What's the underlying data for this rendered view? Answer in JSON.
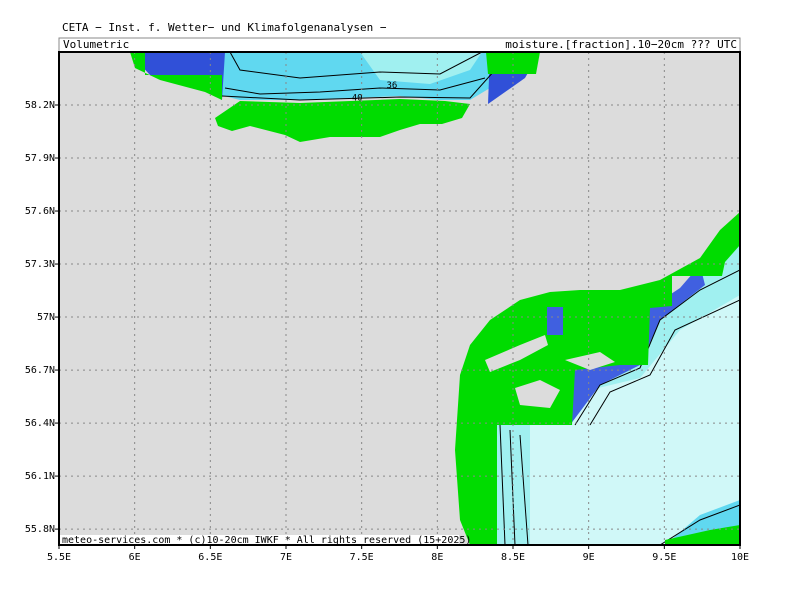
{
  "header": {
    "title": "CETA − Inst. f. Wetter− und Klimafolgenanalysen −",
    "left": "Volumetric",
    "right": "moisture.[fraction].10−20cm ??? UTC"
  },
  "map": {
    "xlim": [
      5.5,
      10
    ],
    "ylim": [
      55.71,
      58.5
    ],
    "xticks": [
      {
        "value": 5.5,
        "label": "5.5E"
      },
      {
        "value": 6,
        "label": "6E"
      },
      {
        "value": 6.5,
        "label": "6.5E"
      },
      {
        "value": 7,
        "label": "7E"
      },
      {
        "value": 7.5,
        "label": "7.5E"
      },
      {
        "value": 8,
        "label": "8E"
      },
      {
        "value": 8.5,
        "label": "8.5E"
      },
      {
        "value": 9,
        "label": "9E"
      },
      {
        "value": 9.5,
        "label": "9.5E"
      },
      {
        "value": 10,
        "label": "10E"
      }
    ],
    "yticks": [
      {
        "value": 58.2,
        "label": "58.2N"
      },
      {
        "value": 57.9,
        "label": "57.9N"
      },
      {
        "value": 57.6,
        "label": "57.6N"
      },
      {
        "value": 57.3,
        "label": "57.3N"
      },
      {
        "value": 57,
        "label": "57N"
      },
      {
        "value": 56.7,
        "label": "56.7N"
      },
      {
        "value": 56.4,
        "label": "56.4N"
      },
      {
        "value": 56.1,
        "label": "56.1N"
      },
      {
        "value": 55.8,
        "label": "55.8N"
      }
    ],
    "contour_labels": [
      {
        "value": 36,
        "lon": 7.7,
        "lat": 58.31
      },
      {
        "value": 40,
        "lon": 7.47,
        "lat": 58.24
      }
    ]
  },
  "footer": "meteo-services.com * (c)10-20cm IWKF * All rights reserved (15+2025)"
}
